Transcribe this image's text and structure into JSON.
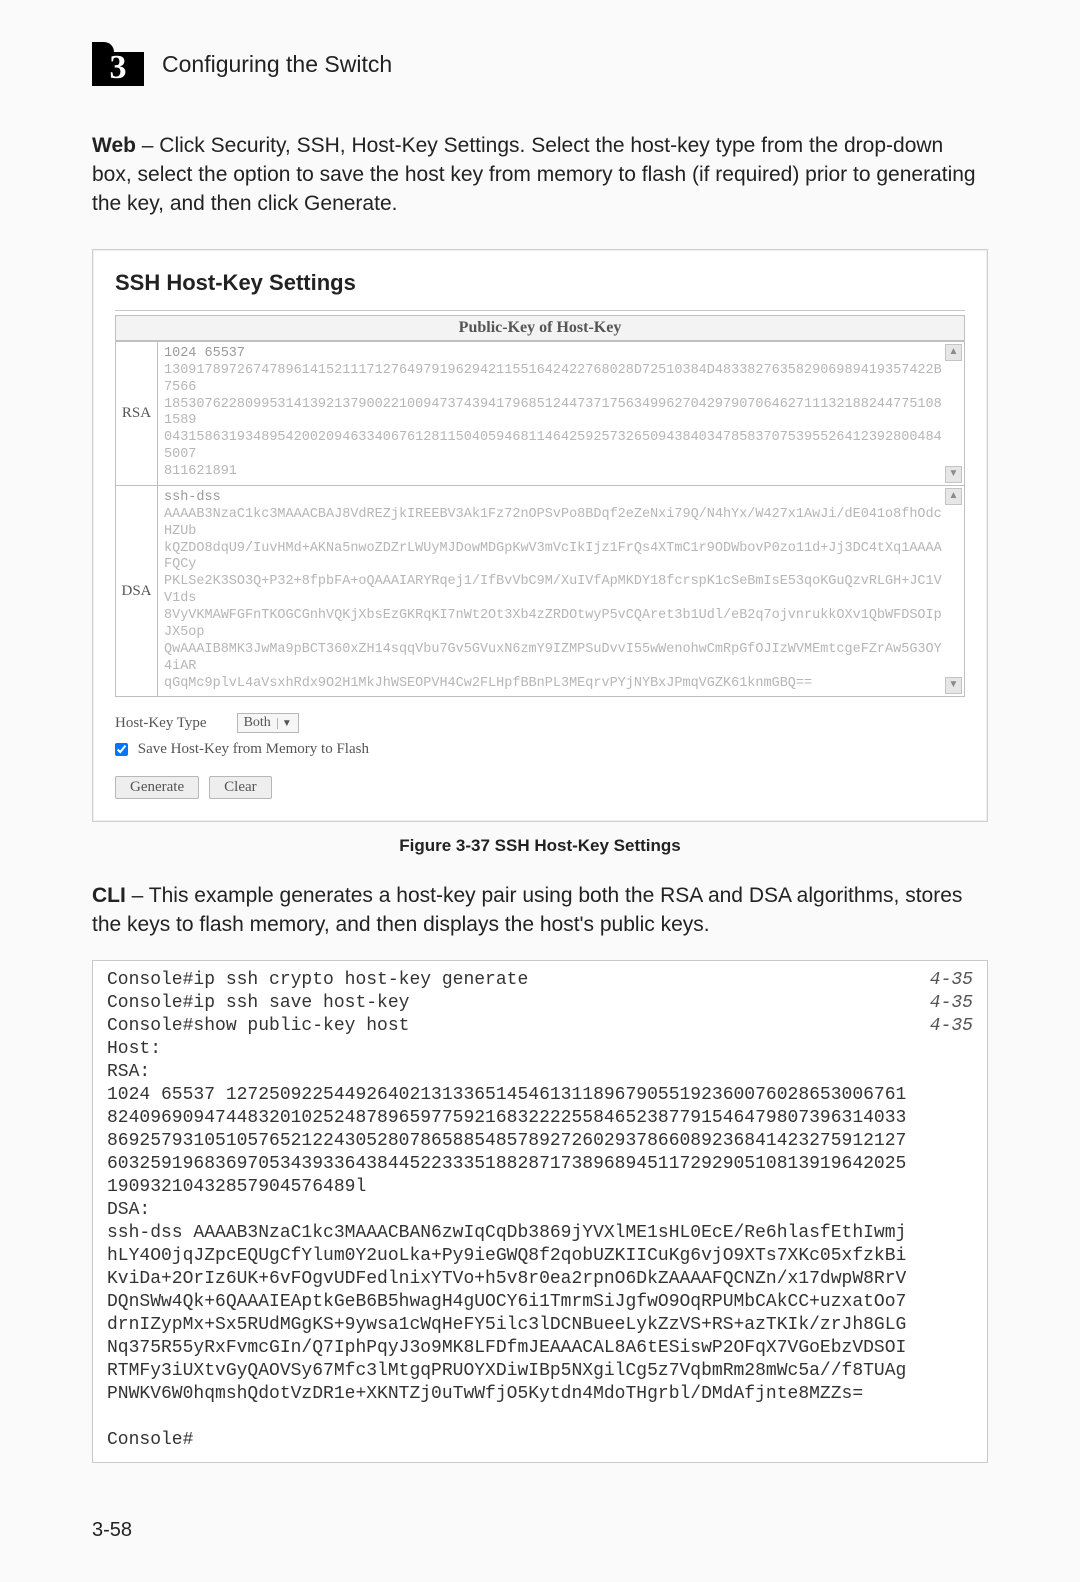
{
  "chapter": {
    "number": "3",
    "title": "Configuring the Switch"
  },
  "intro": {
    "bold": "Web",
    "text": " – Click Security, SSH, Host-Key Settings. Select the host-key type from the drop-down box, select the option to save the host key from memory to flash (if required) prior to generating the key, and then click Generate."
  },
  "screenshot": {
    "heading": "SSH Host-Key Settings",
    "tableHeader": "Public-Key of Host-Key",
    "rsa": {
      "label": "RSA",
      "lines": [
        "1024 65537",
        "1309178972674789614152111712764979196294211551642422768028D72510384D483382763582906989419357422B7566",
        "1853076228099531413921379002210094737439417968512447371756349962704297907064627111321882447751081589",
        "0431586319348954200209463340676128115040594681146425925732650943840347858370753955264123928004845007",
        "811621891"
      ]
    },
    "dsa": {
      "label": "DSA",
      "lines": [
        "ssh-dss",
        "AAAAB3NzaC1kc3MAAACBAJ8VdREZjkIREEBV3Ak1Fz72nOPSvPo8BDqf2eZeNxi79Q/N4hYx/W427x1AwJi/dE041o8fhOdcHZUb",
        "kQZDO8dqU9/IuvHMd+AKNa5nwoZDZrLWUyMJDowMDGpKwV3mVcIkIjz1FrQs4XTmC1r9ODWbovP0zo11d+Jj3DC4tXq1AAAAFQCy",
        "PKLSe2K3SO3Q+P32+8fpbFA+oQAAAIARYRqej1/IfBvVbC9M/XuIVfApMKDY18fcrspK1cSeBmIsE53qoKGuQzvRLGH+JC1VV1ds",
        "8VyVKMAWFGFnTKOGCGnhVQKjXbsEzGKRqKI7nWt2Ot3Xb4zZRDOtwyP5vCQAret3b1Udl/eB2q7ojvnrukkOXv1QbWFDSOIpJX5op",
        "QwAAAIB8MK3JwMa9pBCT360xZH14sqqVbu7Gv5GVuxN6zmY9IZMPSuDvvI55wWenohwCmRpGfOJIzWVMEmtcgeFZrAw5G3OY4iAR",
        "qGqMc9plvL4aVsxhRdx9O2H1MkJhWSEOPVH4Cw2FLHpfBBnPL3MEqrvPYjNYBxJPmqVGZK61knmGBQ=="
      ]
    },
    "hostKeyTypeLabel": "Host-Key Type",
    "hostKeyTypeValue": "Both",
    "saveCheckboxLabel": "Save Host-Key from Memory to Flash",
    "generateBtn": "Generate",
    "clearBtn": "Clear"
  },
  "figCaption": "Figure 3-37  SSH Host-Key Settings",
  "cliIntro": {
    "bold": "CLI",
    "text": " – This example generates a host-key pair using both the RSA and DSA algorithms, stores the keys to flash memory, and then displays the host's public keys."
  },
  "cli": {
    "refLines": [
      {
        "cmd": "Console#ip ssh crypto host-key generate",
        "ref": "4-35"
      },
      {
        "cmd": "Console#ip ssh save host-key",
        "ref": "4-35"
      },
      {
        "cmd": "Console#show public-key host",
        "ref": "4-35"
      }
    ],
    "body": [
      "Host:",
      "RSA:",
      "1024 65537 127250922544926402131336514546131189679055192360076028653006761",
      "82409690947448320102524878965977592168322225584652387791546479807396314033",
      "86925793105105765212243052807865885485789272602937866089236841423275912127",
      "60325919683697053439336438445223335188287173896894511729290510813919642025",
      "19093210432857904576489l",
      "DSA:",
      "ssh-dss AAAAB3NzaC1kc3MAAACBAN6zwIqCqDb3869jYVXlME1sHL0EcE/Re6hlasfEthIwmj",
      "hLY4O0jqJZpcEQUgCfYlum0Y2uoLka+Py9ieGWQ8f2qobUZKIICuKg6vjO9XTs7XKc05xfzkBi",
      "KviDa+2OrIz6UK+6vFOgvUDFedlnixYTVo+h5v8r0ea2rpnO6DkZAAAAFQCNZn/x17dwpW8RrV",
      "DQnSWw4Qk+6QAAAIEAptkGeB6B5hwagH4gUOCY6i1TmrmSiJgfwO9OqRPUMbCAkCC+uzxatOo7",
      "drnIZypMx+Sx5RUdMGgKS+9ywsa1cWqHeFY5ilc3lDCNBueeLykZzVS+RS+azTKIk/zrJh8GLG",
      "Nq375R55yRxFvmcGIn/Q7IphPqyJ3o9MK8LFDfmJEAAACAL8A6tESiswP2OFqX7VGoEbzVDSOI",
      "RTMFy3iUXtvGyQAOVSy67Mfc3lMtgqPRUOYXDiwIBp5NXgilCg5z7VqbmRm28mWc5a//f8TUAg",
      "PNWKV6W0hqmshQdotVzDR1e+XKNTZj0uTwWfjO5Kytdn4MdoTHgrbl/DMdAfjnte8MZZs="
    ],
    "prompt": "Console#"
  },
  "pageNumber": "3-58"
}
